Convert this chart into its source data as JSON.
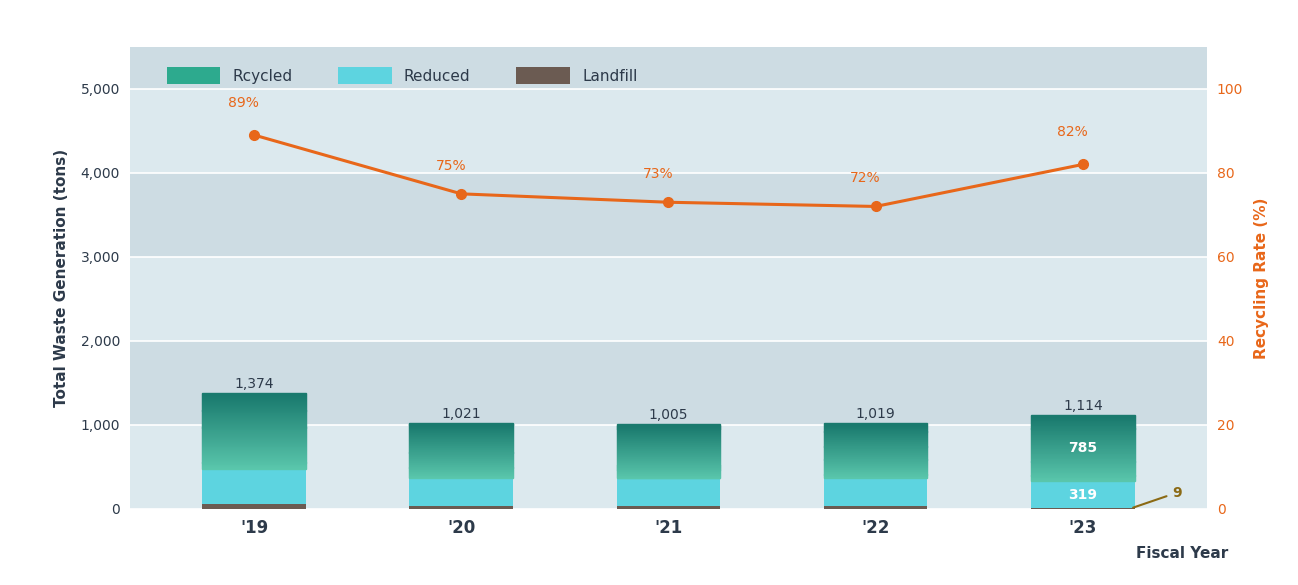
{
  "years": [
    "'19",
    "'20",
    "'21",
    "'22",
    "'23"
  ],
  "recycled": [
    900,
    650,
    640,
    650,
    785
  ],
  "reduced": [
    420,
    330,
    325,
    330,
    319
  ],
  "landfill": [
    54,
    41,
    40,
    39,
    10
  ],
  "totals": [
    1374,
    1021,
    1005,
    1019,
    1114
  ],
  "recycling_rate": [
    89,
    75,
    73,
    72,
    82
  ],
  "outer_bg": "#ffffff",
  "plot_bg_light": "#dce9ee",
  "plot_bg_dark": "#cddce3",
  "bar_width": 0.5,
  "recycled_color_top": "#1a7a6e",
  "recycled_color_bottom": "#5bc8ad",
  "reduced_color": "#5dd4e0",
  "landfill_color": "#6b5b52",
  "line_color": "#e8671a",
  "text_color": "#2d3a4a",
  "annotation_color": "#8B6A14",
  "ylabel_left": "Total Waste Generation (tons)",
  "ylabel_right": "Recycling Rate (%)",
  "xlabel": "Fiscal Year",
  "ylim_left": [
    0,
    5500
  ],
  "ylim_right": [
    0,
    110
  ],
  "yticks_left": [
    0,
    1000,
    2000,
    3000,
    4000,
    5000
  ],
  "yticks_right": [
    0,
    20,
    40,
    60,
    80,
    100
  ],
  "legend_labels": [
    "Rcycled",
    "Reduced",
    "Landfill"
  ]
}
